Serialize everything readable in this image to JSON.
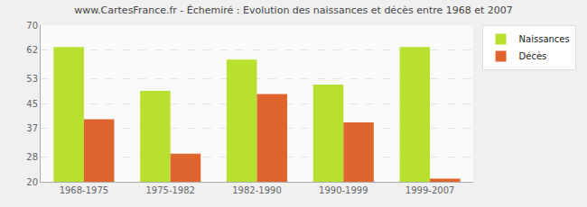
{
  "chart_data": {
    "type": "bar",
    "title": "www.CartesFrance.fr - Échemiré : Evolution des naissances et décès entre 1968 et 2007",
    "categories": [
      "1968-1975",
      "1975-1982",
      "1982-1990",
      "1990-1999",
      "1999-2007"
    ],
    "series": [
      {
        "name": "Naissances",
        "color": "#b8e02e",
        "values": [
          63,
          49,
          59,
          51,
          63
        ]
      },
      {
        "name": "Décès",
        "color": "#e0642e",
        "values": [
          40,
          29,
          48,
          39,
          21
        ]
      }
    ],
    "ylim": [
      20,
      70
    ],
    "yticks": [
      20,
      28,
      37,
      45,
      53,
      62,
      70
    ],
    "grid": true,
    "legend": "top right"
  }
}
